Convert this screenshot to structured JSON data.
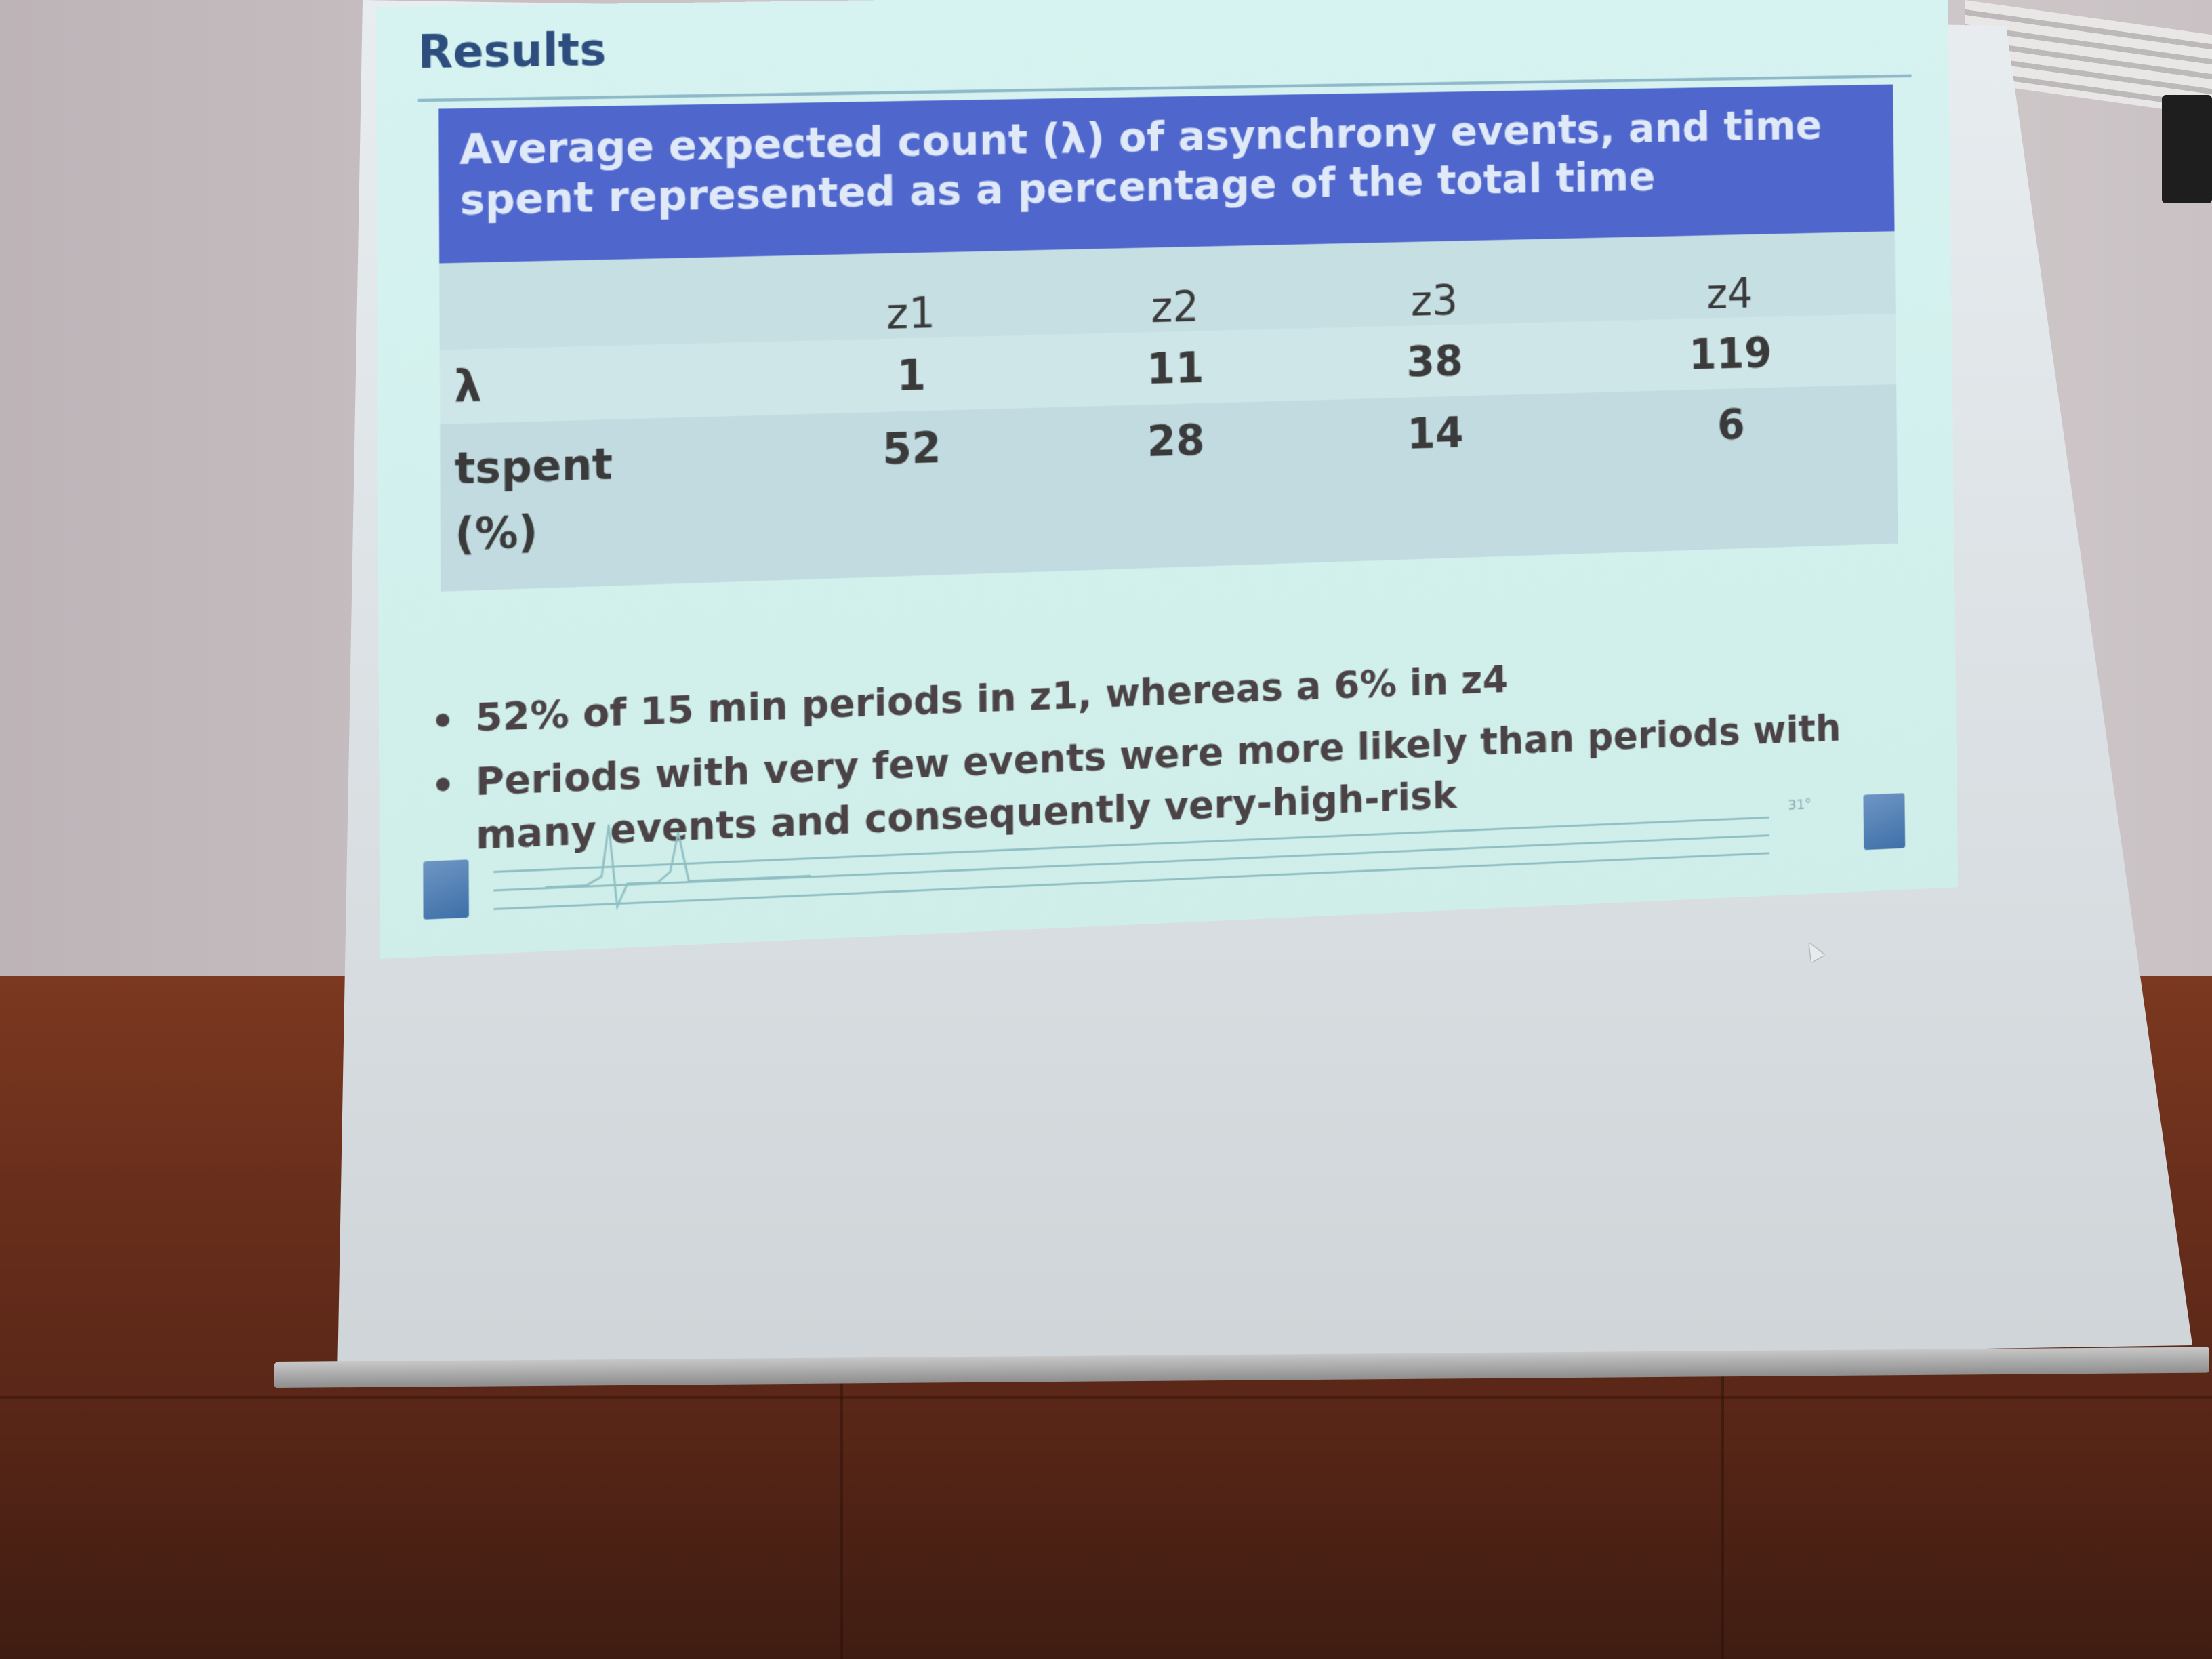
{
  "slide": {
    "title": "Results",
    "table": {
      "caption": "Average expected count (λ) of asynchrony events, and time spent represented as a percentage of the total time",
      "columns": [
        "z1",
        "z2",
        "z3",
        "z4"
      ],
      "rows": [
        {
          "label": "λ",
          "values": [
            "1",
            "11",
            "38",
            "119"
          ]
        },
        {
          "label_line1": "tspent",
          "label_line2": "(%)",
          "values": [
            "52",
            "28",
            "14",
            "6"
          ]
        }
      ]
    },
    "bullets": [
      "52% of 15 min periods in z1, whereas a 6% in z4",
      "Periods with very few events were more likely than periods with many events and consequently very-high-risk"
    ],
    "footer": {
      "badge": "31°"
    }
  },
  "colors": {
    "slide_background": "#d5f2ef",
    "table_header": "#4f67cc",
    "title": "#2c4d7d",
    "wall": "#cfc7c9",
    "wood_panel": "#6a2f1c"
  }
}
